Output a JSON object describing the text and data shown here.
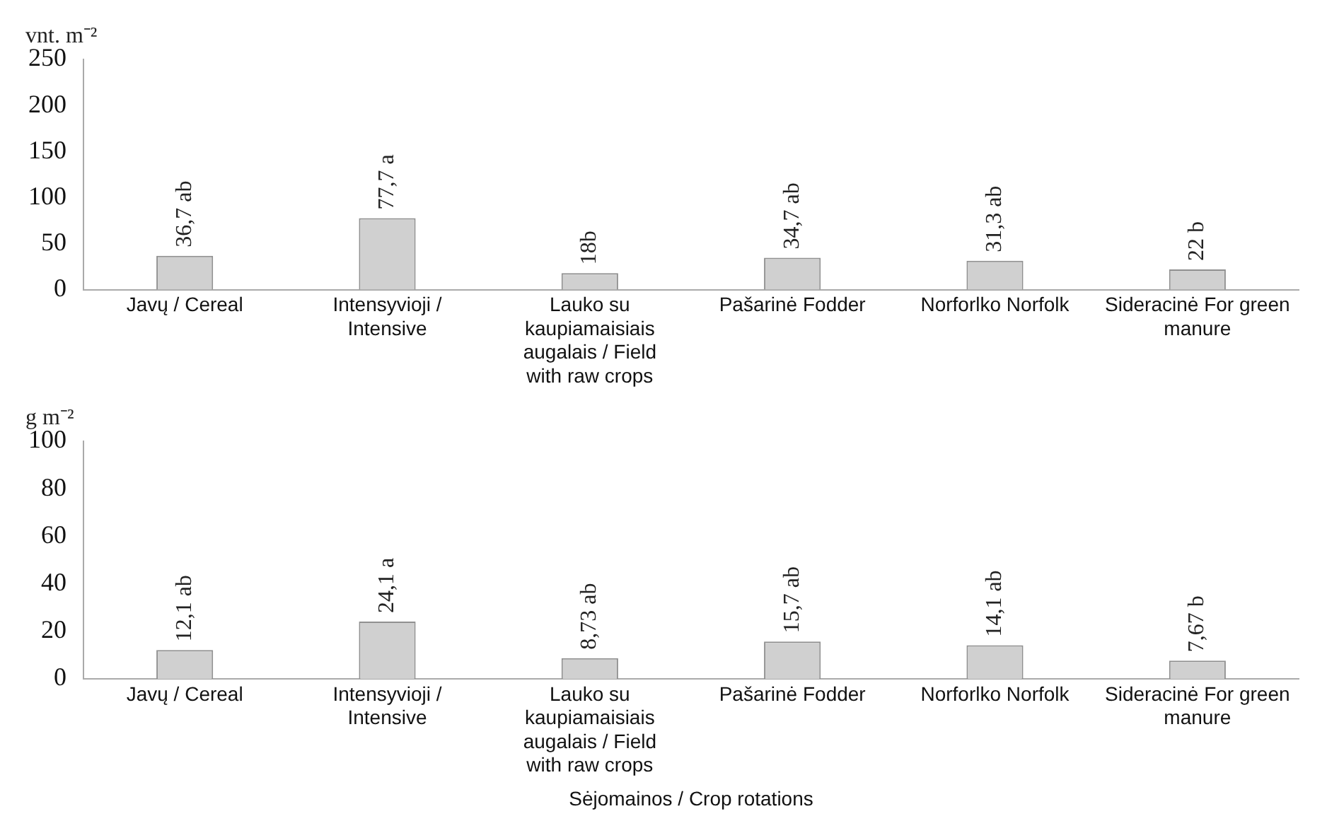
{
  "chart_data": [
    {
      "type": "bar",
      "ylabel": "vnt. m⁻²",
      "categories": [
        "Javų / Cereal",
        "Intensyvioji / Intensive",
        "Lauko su kaupiamaisiais augalais / Field with raw crops",
        "Pašarinė Fodder",
        "Norforlko Norfolk",
        "Sideracinė For green manure"
      ],
      "values": [
        36.7,
        77.7,
        18,
        34.7,
        31.3,
        22
      ],
      "value_labels": [
        "36,7 ab",
        "77,7 a",
        "18b",
        "34,7 ab",
        "31,3 ab",
        "22 b"
      ],
      "color": "#d0d0d0",
      "ylim": [
        0,
        250
      ],
      "yticks": [
        0,
        50,
        100,
        150,
        200,
        250
      ],
      "grid": false,
      "legend": false
    },
    {
      "type": "bar",
      "ylabel": "g m⁻²",
      "xlabel": "Sėjomainos / Crop rotations",
      "categories": [
        "Javų / Cereal",
        "Intensyvioji / Intensive",
        "Lauko su kaupiamaisiais augalais / Field with raw crops",
        "Pašarinė Fodder",
        "Norforlko Norfolk",
        "Sideracinė For green manure"
      ],
      "values": [
        12.1,
        24.1,
        8.73,
        15.7,
        14.1,
        7.67
      ],
      "value_labels": [
        "12,1 ab",
        "24,1 a",
        "8,73 ab",
        "15,7 ab",
        "14,1 ab",
        "7,67 b"
      ],
      "color": "#d0d0d0",
      "ylim": [
        0,
        100
      ],
      "yticks": [
        0,
        20,
        40,
        60,
        80,
        100
      ],
      "grid": false,
      "legend": false
    }
  ]
}
